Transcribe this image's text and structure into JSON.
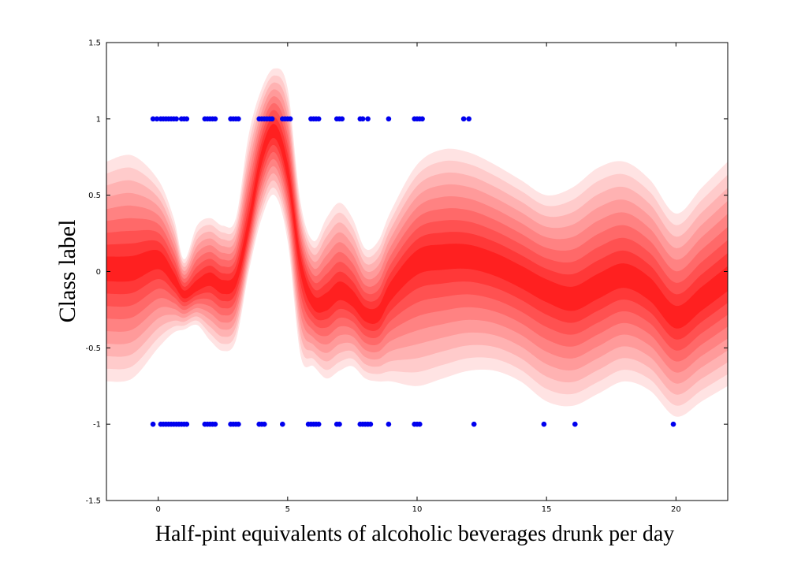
{
  "chart_data": {
    "type": "area",
    "title": "",
    "xlabel": "Half-pint equivalents of alcoholic beverages drunk per day",
    "ylabel": "Class label",
    "xlim": [
      -2,
      22
    ],
    "ylim": [
      -1.5,
      1.5
    ],
    "xticks": [
      0,
      5,
      10,
      15,
      20
    ],
    "xtick_labels": [
      "0",
      "5",
      "10",
      "15",
      "20"
    ],
    "yticks": [
      -1.5,
      -1,
      -0.5,
      0,
      0.5,
      1,
      1.5
    ],
    "ytick_labels": [
      "-1.5",
      "-1",
      "-0.5",
      "0",
      "0.5",
      "1",
      "1.5"
    ],
    "grid": false,
    "colors": {
      "band_lightest": "#ffe3e3",
      "band_darkest": "#ff2020",
      "points": "#0000ee"
    },
    "band_levels": 9,
    "series": [
      {
        "type": "band",
        "x": [
          -2,
          -1,
          0,
          0.6,
          1,
          1.5,
          2,
          2.5,
          3,
          3.5,
          4,
          4.5,
          5,
          5.5,
          6,
          6.5,
          7,
          7.5,
          8,
          8.5,
          9,
          10,
          11,
          12,
          13,
          14,
          15,
          16,
          17,
          18,
          19,
          20,
          21,
          22
        ],
        "mean": [
          0.02,
          0.02,
          0.08,
          -0.05,
          -0.15,
          -0.1,
          -0.05,
          -0.1,
          -0.05,
          0.3,
          0.75,
          0.92,
          0.65,
          0.05,
          -0.2,
          -0.2,
          -0.13,
          -0.18,
          -0.28,
          -0.28,
          -0.12,
          0.07,
          0.1,
          0.1,
          0.05,
          -0.03,
          -0.12,
          -0.18,
          -0.1,
          -0.03,
          -0.12,
          -0.3,
          -0.18,
          -0.05
        ],
        "upper": [
          0.72,
          0.76,
          0.6,
          0.35,
          0.08,
          0.3,
          0.35,
          0.3,
          0.35,
          0.9,
          1.2,
          1.33,
          1.2,
          0.45,
          0.2,
          0.35,
          0.45,
          0.35,
          0.15,
          0.2,
          0.4,
          0.7,
          0.8,
          0.78,
          0.7,
          0.6,
          0.5,
          0.55,
          0.68,
          0.72,
          0.6,
          0.38,
          0.55,
          0.72
        ],
        "lower": [
          -0.72,
          -0.7,
          -0.5,
          -0.4,
          -0.38,
          -0.35,
          -0.45,
          -0.52,
          -0.45,
          0.0,
          0.35,
          0.5,
          0.2,
          -0.55,
          -0.62,
          -0.7,
          -0.65,
          -0.62,
          -0.7,
          -0.72,
          -0.72,
          -0.75,
          -0.7,
          -0.65,
          -0.65,
          -0.72,
          -0.85,
          -0.88,
          -0.8,
          -0.72,
          -0.78,
          -0.95,
          -0.85,
          -0.75
        ]
      },
      {
        "type": "scatter",
        "y": 1,
        "x": [
          -0.2,
          -0.05,
          0.1,
          0.2,
          0.3,
          0.4,
          0.5,
          0.6,
          0.7,
          0.9,
          1.0,
          1.1,
          1.8,
          1.9,
          2.0,
          2.1,
          2.2,
          2.8,
          2.9,
          3.0,
          3.1,
          3.9,
          4.0,
          4.1,
          4.2,
          4.3,
          4.4,
          4.8,
          4.9,
          5.0,
          5.1,
          5.9,
          6.0,
          6.1,
          6.2,
          6.9,
          7.0,
          7.1,
          7.8,
          7.9,
          8.1,
          8.9,
          9.9,
          10.0,
          10.1,
          10.2,
          11.8,
          12.0
        ]
      },
      {
        "type": "scatter",
        "y": -1,
        "x": [
          -0.2,
          0.1,
          0.2,
          0.3,
          0.4,
          0.5,
          0.6,
          0.7,
          0.8,
          0.9,
          1.0,
          1.1,
          1.8,
          1.9,
          2.0,
          2.1,
          2.2,
          2.8,
          2.9,
          3.0,
          3.1,
          3.9,
          4.0,
          4.1,
          4.8,
          5.8,
          5.9,
          6.0,
          6.1,
          6.2,
          6.9,
          7.0,
          7.8,
          7.9,
          8.0,
          8.1,
          8.2,
          8.9,
          9.9,
          10.0,
          10.1,
          12.2,
          14.9,
          16.1,
          19.9
        ]
      }
    ]
  }
}
